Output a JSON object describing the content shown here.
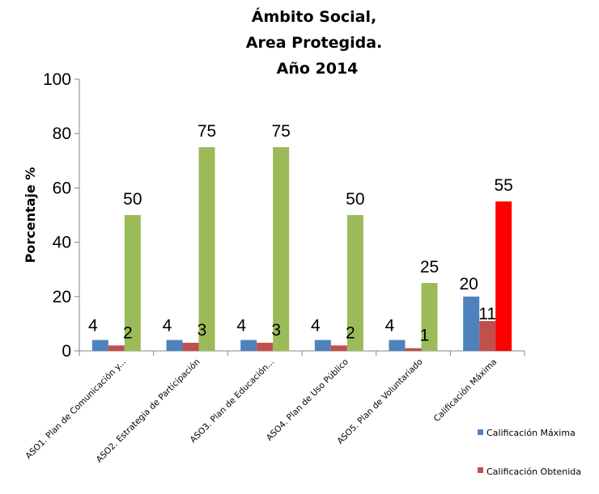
{
  "chart_data": {
    "type": "bar",
    "title": [
      "Ámbito Social,",
      "Area Protegida.",
      "Año 2014"
    ],
    "xlabel": "",
    "ylabel": "Porcentaje  %",
    "ylim": [
      0,
      100
    ],
    "yticks": [
      0,
      20,
      40,
      60,
      80,
      100
    ],
    "grid": false,
    "legend_position": "bottom-right",
    "categories": [
      "ASO1. Plan de Comunicación y...",
      "ASO2. Estrategia de Participación",
      "ASO3. Plan de Educación...",
      "ASO4. Plan de Uso Público",
      "ASO5. Plan de Voluntariado",
      "Calificación Máxima"
    ],
    "series": [
      {
        "name": "Calificación Máxima",
        "color": "#4f81bd",
        "values": [
          4,
          4,
          4,
          4,
          4,
          20
        ],
        "labels": [
          "4",
          "4",
          "4",
          "4",
          "4",
          "20"
        ]
      },
      {
        "name": "Calificación Obtenida",
        "color": "#c0504d",
        "values": [
          2,
          3,
          3,
          2,
          1,
          11
        ],
        "labels": [
          "2",
          "3",
          "3",
          "2",
          "1",
          "11"
        ]
      },
      {
        "name": "",
        "color": "#9bbb59",
        "values": [
          50,
          75,
          75,
          50,
          25,
          55
        ],
        "labels": [
          "50",
          "75",
          "75",
          "50",
          "25",
          "55"
        ],
        "point_colors": [
          "#9bbb59",
          "#9bbb59",
          "#9bbb59",
          "#9bbb59",
          "#9bbb59",
          "#ff0000"
        ]
      }
    ],
    "legend": [
      "Calificación Máxima",
      "Calificación Obtenida"
    ]
  }
}
